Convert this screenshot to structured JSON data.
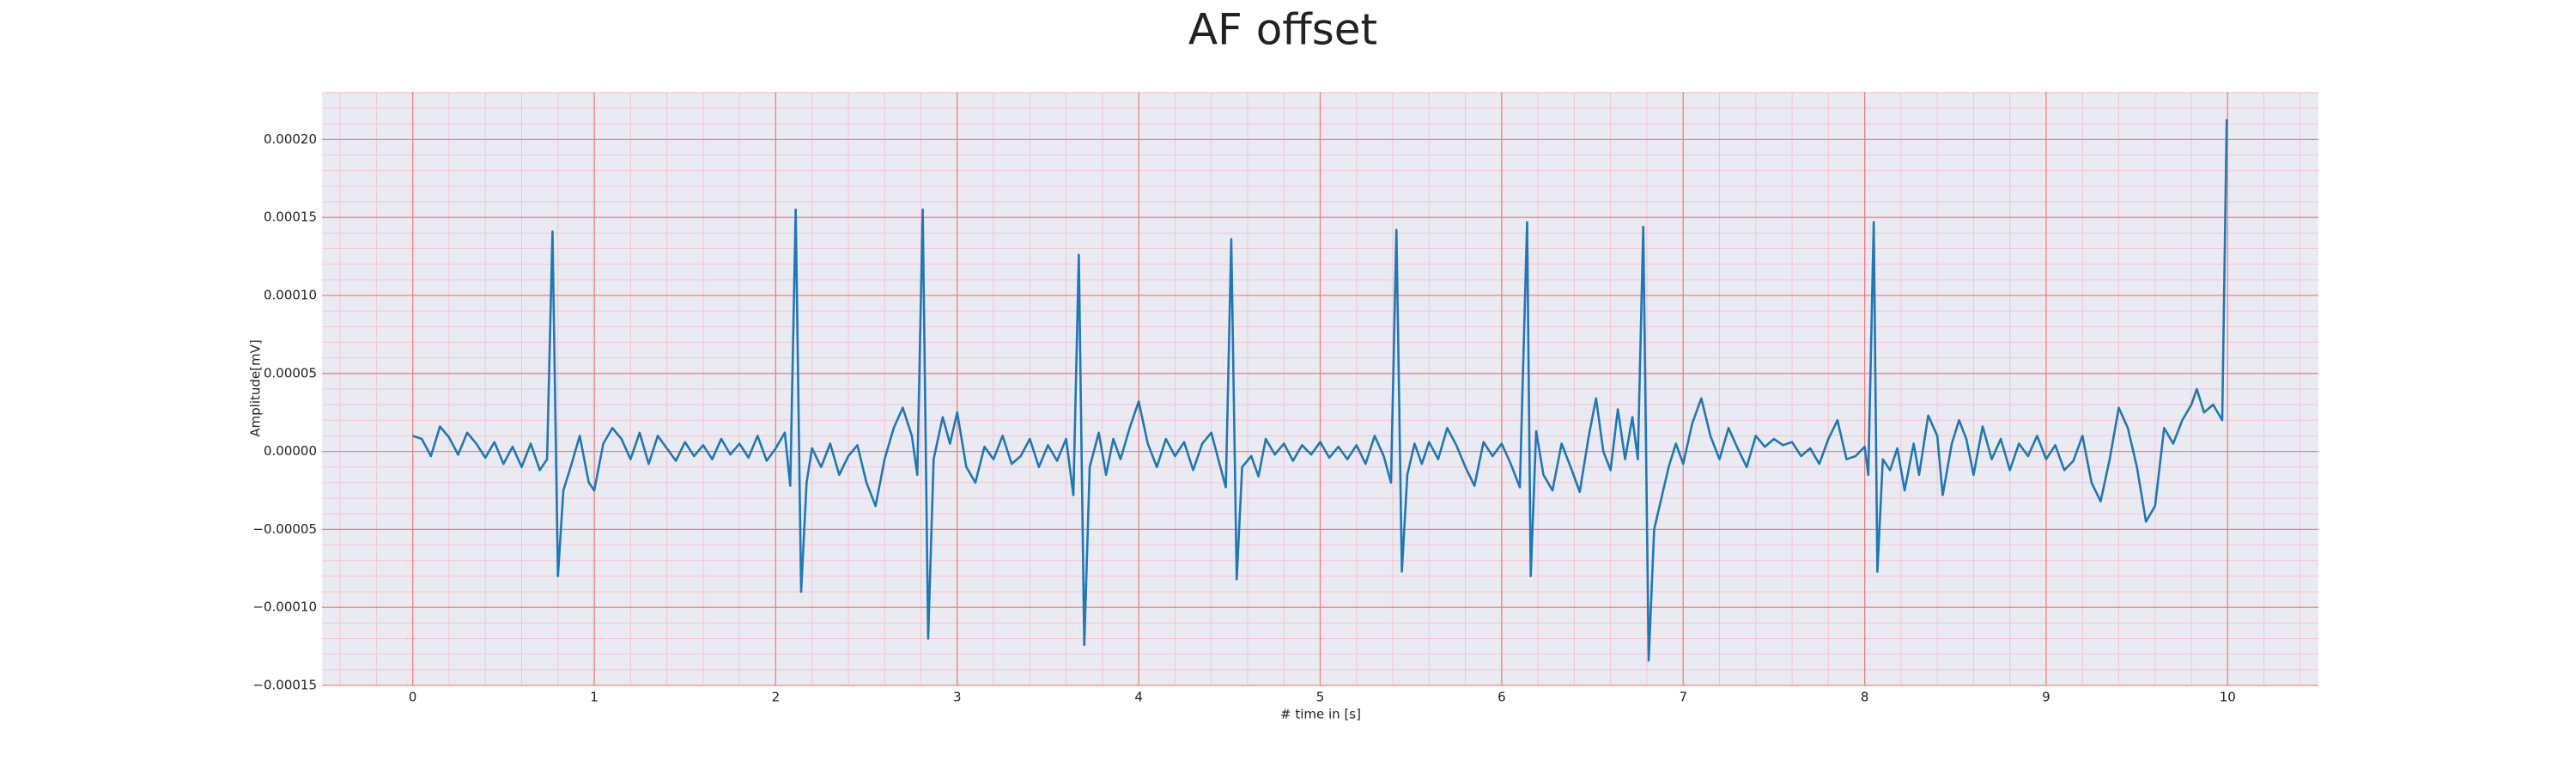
{
  "chart_data": {
    "type": "line",
    "title": "AF offset",
    "xlabel": "# time in [s]",
    "ylabel": "Amplitude[mV]",
    "xlim": [
      -0.5,
      10.5
    ],
    "ylim": [
      -0.00015,
      0.0002305
    ],
    "xticks": [
      0,
      1,
      2,
      3,
      4,
      5,
      6,
      7,
      8,
      9,
      10
    ],
    "yticks": [
      {
        "value": -0.00015,
        "label": "−0.00015"
      },
      {
        "value": -0.0001,
        "label": "−0.00010"
      },
      {
        "value": -5e-05,
        "label": "−0.00005"
      },
      {
        "value": 0,
        "label": "0.00000"
      },
      {
        "value": 5e-05,
        "label": "0.00005"
      },
      {
        "value": 0.0001,
        "label": "0.00010"
      },
      {
        "value": 0.00015,
        "label": "0.00015"
      },
      {
        "value": 0.0002,
        "label": "0.00020"
      }
    ],
    "grid": true,
    "minor_grid": true,
    "grid_color": "#f08080",
    "minor_grid_color": "#f4c4cf",
    "background": "#eaeaf2",
    "series": [
      {
        "color": "#1f77b4",
        "x": [
          0,
          0.05,
          0.1,
          0.15,
          0.2,
          0.25,
          0.3,
          0.35,
          0.4,
          0.45,
          0.5,
          0.55,
          0.6,
          0.65,
          0.7,
          0.74,
          0.77,
          0.8,
          0.83,
          0.87,
          0.92,
          0.97,
          1.0,
          1.05,
          1.1,
          1.15,
          1.2,
          1.25,
          1.3,
          1.35,
          1.4,
          1.45,
          1.5,
          1.55,
          1.6,
          1.65,
          1.7,
          1.75,
          1.8,
          1.85,
          1.9,
          1.95,
          2.0,
          2.05,
          2.08,
          2.11,
          2.14,
          2.17,
          2.2,
          2.25,
          2.3,
          2.35,
          2.4,
          2.45,
          2.5,
          2.55,
          2.6,
          2.65,
          2.7,
          2.75,
          2.78,
          2.81,
          2.84,
          2.87,
          2.92,
          2.96,
          3.0,
          3.05,
          3.1,
          3.15,
          3.2,
          3.25,
          3.3,
          3.35,
          3.4,
          3.45,
          3.5,
          3.55,
          3.6,
          3.64,
          3.67,
          3.7,
          3.73,
          3.78,
          3.82,
          3.86,
          3.9,
          3.95,
          4.0,
          4.05,
          4.1,
          4.15,
          4.2,
          4.25,
          4.3,
          4.35,
          4.4,
          4.45,
          4.48,
          4.51,
          4.54,
          4.57,
          4.62,
          4.66,
          4.7,
          4.75,
          4.8,
          4.85,
          4.9,
          4.95,
          5.0,
          5.05,
          5.1,
          5.15,
          5.2,
          5.25,
          5.3,
          5.35,
          5.39,
          5.42,
          5.45,
          5.48,
          5.52,
          5.56,
          5.6,
          5.65,
          5.7,
          5.75,
          5.8,
          5.85,
          5.9,
          5.95,
          6.0,
          6.05,
          6.1,
          6.14,
          6.16,
          6.19,
          6.23,
          6.28,
          6.33,
          6.38,
          6.43,
          6.48,
          6.52,
          6.56,
          6.6,
          6.64,
          6.68,
          6.72,
          6.75,
          6.78,
          6.81,
          6.84,
          6.88,
          6.92,
          6.96,
          7.0,
          7.05,
          7.1,
          7.15,
          7.2,
          7.25,
          7.3,
          7.35,
          7.4,
          7.45,
          7.5,
          7.55,
          7.6,
          7.65,
          7.7,
          7.75,
          7.8,
          7.85,
          7.9,
          7.95,
          8.0,
          8.02,
          8.05,
          8.07,
          8.1,
          8.14,
          8.18,
          8.22,
          8.27,
          8.3,
          8.35,
          8.4,
          8.43,
          8.48,
          8.52,
          8.56,
          8.6,
          8.65,
          8.7,
          8.75,
          8.8,
          8.85,
          8.9,
          8.95,
          9.0,
          9.05,
          9.1,
          9.15,
          9.2,
          9.25,
          9.3,
          9.35,
          9.4,
          9.45,
          9.5,
          9.55,
          9.6,
          9.65,
          9.7,
          9.75,
          9.8,
          9.83,
          9.87,
          9.92,
          9.97,
          9.995
        ],
        "values": [
          1e-05,
          8e-06,
          -3e-06,
          1.6e-05,
          9e-06,
          -2e-06,
          1.2e-05,
          5e-06,
          -4e-06,
          6e-06,
          -8e-06,
          3e-06,
          -1e-05,
          5e-06,
          -1.2e-05,
          -5e-06,
          0.000141,
          -8e-05,
          -2.5e-05,
          -1e-05,
          1e-05,
          -2e-05,
          -2.5e-05,
          5e-06,
          1.5e-05,
          8e-06,
          -5e-06,
          1.2e-05,
          -8e-06,
          1e-05,
          2e-06,
          -6e-06,
          6e-06,
          -3e-06,
          4e-06,
          -5e-06,
          8e-06,
          -2e-06,
          5e-06,
          -4e-06,
          1e-05,
          -6e-06,
          2e-06,
          1.2e-05,
          -2.2e-05,
          0.000155,
          -9e-05,
          -2e-05,
          2e-06,
          -1e-05,
          5e-06,
          -1.5e-05,
          -3e-06,
          4e-06,
          -2e-05,
          -3.5e-05,
          -5e-06,
          1.5e-05,
          2.8e-05,
          1e-05,
          -1.5e-05,
          0.000155,
          -0.00012,
          -5e-06,
          2.2e-05,
          5e-06,
          2.5e-05,
          -1e-05,
          -2e-05,
          3e-06,
          -5e-06,
          1e-05,
          -8e-06,
          -3e-06,
          8e-06,
          -1e-05,
          4e-06,
          -6e-06,
          8e-06,
          -2.8e-05,
          0.000126,
          -0.000124,
          -1e-05,
          1.2e-05,
          -1.5e-05,
          8e-06,
          -5e-06,
          1.5e-05,
          3.2e-05,
          5e-06,
          -1e-05,
          8e-06,
          -3e-06,
          6e-06,
          -1.2e-05,
          5e-06,
          1.2e-05,
          -1e-05,
          -2.3e-05,
          0.000136,
          -8.2e-05,
          -1e-05,
          -3e-06,
          -1.6e-05,
          8e-06,
          -2e-06,
          5e-06,
          -6e-06,
          4e-06,
          -2e-06,
          6e-06,
          -4e-06,
          3e-06,
          -5e-06,
          4e-06,
          -8e-06,
          1e-05,
          -3e-06,
          -2e-05,
          0.000142,
          -7.7e-05,
          -1.5e-05,
          5e-06,
          -8e-06,
          6e-06,
          -5e-06,
          1.5e-05,
          4e-06,
          -1e-05,
          -2.2e-05,
          6e-06,
          -3e-06,
          5e-06,
          -8e-06,
          -2.3e-05,
          0.000147,
          -8e-05,
          1.3e-05,
          -1.5e-05,
          -2.5e-05,
          5e-06,
          -1e-05,
          -2.6e-05,
          1e-05,
          3.4e-05,
          0.0,
          -1.2e-05,
          2.7e-05,
          -5e-06,
          2.2e-05,
          -5e-06,
          0.000144,
          -0.000134,
          -5e-05,
          -3e-05,
          -1e-05,
          5e-06,
          -8e-06,
          1.8e-05,
          3.4e-05,
          1e-05,
          -5e-06,
          1.5e-05,
          2e-06,
          -1e-05,
          1e-05,
          3e-06,
          8e-06,
          4e-06,
          6e-06,
          -3e-06,
          2e-06,
          -8e-06,
          8e-06,
          2e-05,
          -5e-06,
          -3e-06,
          3e-06,
          -1.5e-05,
          0.000147,
          -7.7e-05,
          -5e-06,
          -1.2e-05,
          2e-06,
          -2.5e-05,
          5e-06,
          -1.5e-05,
          2.3e-05,
          1e-05,
          -2.8e-05,
          5e-06,
          2e-05,
          8e-06,
          -1.5e-05,
          1.6e-05,
          -5e-06,
          8e-06,
          -1.2e-05,
          5e-06,
          -3e-06,
          1e-05,
          -5e-06,
          4e-06,
          -1.2e-05,
          -6e-06,
          1e-05,
          -2e-05,
          -3.2e-05,
          -5e-06,
          2.8e-05,
          1.5e-05,
          -1e-05,
          -4.5e-05,
          -3.5e-05,
          1.5e-05,
          5e-06,
          2e-05,
          3e-05,
          4e-05,
          2.5e-05,
          3e-05,
          2e-05,
          0.000213
        ]
      }
    ]
  }
}
